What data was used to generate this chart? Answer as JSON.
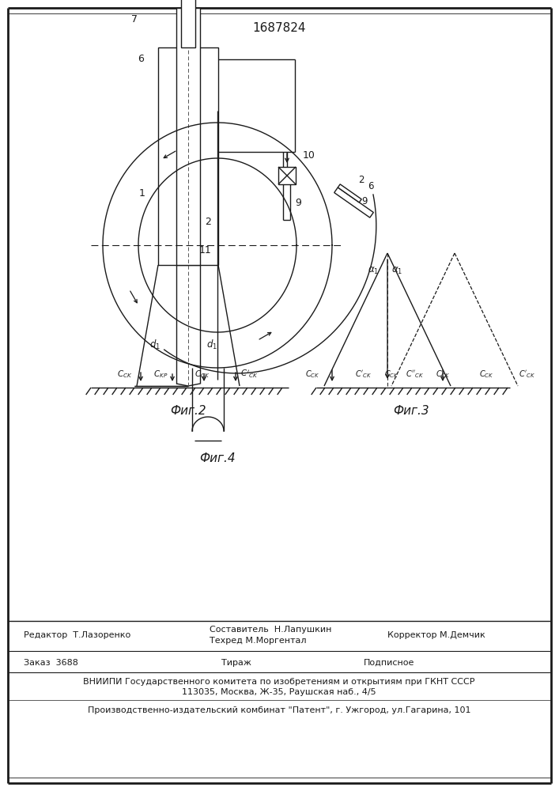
{
  "title": "1687824",
  "fig2_label": "Фиг.2",
  "fig3_label": "Фиг.3",
  "fig4_label": "Фиг.4",
  "footer_line1_left": "Редактор  Т.Лазоренко",
  "footer_comp1": "Составитель  Н.Лапушкин",
  "footer_comp2": "Техред М.Моргентал",
  "footer_line1_right": "Корректор М.Демчик",
  "footer_line2_left": "Заказ  3688",
  "footer_line2_mid": "Тираж",
  "footer_line2_right": "Подписное",
  "footer_line3": "ВНИИПИ Государственного комитета по изобретениям и открытиям при ГКНТ СССР",
  "footer_line4": "113035, Москва, Ж-35, Раушская наб., 4/5",
  "footer_line5": "Производственно-издательский комбинат \"Патент\", г. Ужгород, ул.Гагарина, 101",
  "bg_color": "#ffffff",
  "line_color": "#1a1a1a"
}
